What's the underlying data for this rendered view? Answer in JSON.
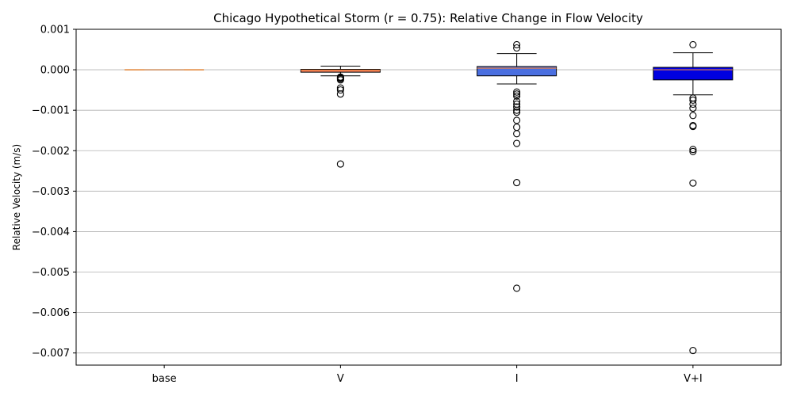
{
  "chart_data": {
    "type": "box",
    "title": "Chicago Hypothetical Storm (r = 0.75): Relative Change in Flow Velocity",
    "xlabel": "",
    "ylabel": "Relative Velocity (m/s)",
    "ylim": [
      -0.0073,
      0.001
    ],
    "yticks": [
      0.001,
      0.0,
      -0.001,
      -0.002,
      -0.003,
      -0.004,
      -0.005,
      -0.006,
      -0.007
    ],
    "ytick_labels": [
      "0.001",
      "0.000",
      "−0.001",
      "−0.002",
      "−0.003",
      "−0.004",
      "−0.005",
      "−0.006",
      "−0.007"
    ],
    "grid": "horizontal",
    "categories": [
      "base",
      "V",
      "I",
      "V+I"
    ],
    "boxes": [
      {
        "label": "base",
        "q1": 0.0,
        "median": 0.0,
        "q3": 0.0,
        "whisker_low": 0.0,
        "whisker_high": 0.0,
        "outliers": [],
        "fill": "#f0a060"
      },
      {
        "label": "V",
        "q1": -6e-05,
        "median": -1e-05,
        "q3": 1e-05,
        "whisker_low": -0.00015,
        "whisker_high": 9e-05,
        "outliers": [
          -0.00018,
          -0.0002,
          -0.00022,
          -0.00025,
          -0.00045,
          -0.0005,
          -0.0006,
          -0.00233
        ],
        "fill": "#f08060"
      },
      {
        "label": "I",
        "q1": -0.00015,
        "median": 4e-05,
        "q3": 8e-05,
        "whisker_low": -0.00035,
        "whisker_high": 0.0004,
        "outliers": [
          0.00062,
          0.00054,
          -0.00055,
          -0.0006,
          -0.00065,
          -0.00078,
          -0.00085,
          -0.00092,
          -0.001,
          -0.00105,
          -0.00125,
          -0.00142,
          -0.00158,
          -0.00182,
          -0.00279,
          -0.0054
        ],
        "fill": "#4a6fe0"
      },
      {
        "label": "V+I",
        "q1": -0.00025,
        "median": 0.0,
        "q3": 6e-05,
        "whisker_low": -0.00062,
        "whisker_high": 0.00042,
        "outliers": [
          0.00062,
          -0.0007,
          -0.00075,
          -0.00085,
          -0.00095,
          -0.00113,
          -0.00138,
          -0.0014,
          -0.00197,
          -0.00202,
          -0.0028,
          -0.00694
        ],
        "fill": "#0000e0"
      }
    ]
  }
}
